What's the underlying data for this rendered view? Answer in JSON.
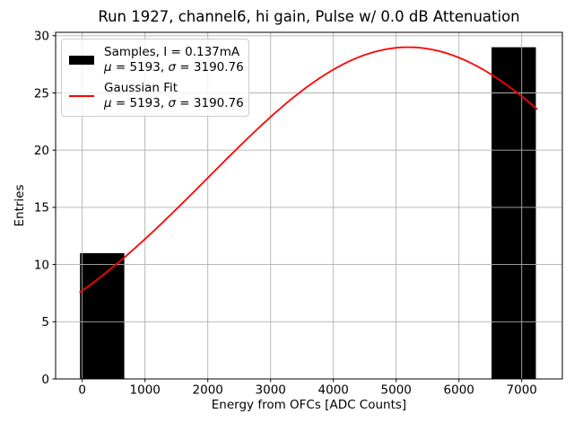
{
  "chart_data": {
    "type": "bar",
    "subtype": "histogram-with-fit",
    "title": "Run 1927, channel6, hi gain, Pulse w/ 0.0 dB Attenuation",
    "xlabel": "Energy from OFCs [ADC Counts]",
    "ylabel": "Entries",
    "bars": [
      {
        "x_start": -35,
        "x_end": 670,
        "count": 11
      },
      {
        "x_start": 6520,
        "x_end": 7225,
        "count": 29
      }
    ],
    "gaussian_fit": {
      "amplitude": 29,
      "mu": 5193,
      "sigma": 3190.76,
      "x_start": -35,
      "x_end": 7240
    },
    "x_ticks": [
      0,
      1000,
      2000,
      3000,
      4000,
      5000,
      6000,
      7000
    ],
    "y_ticks": [
      0,
      5,
      10,
      15,
      20,
      25,
      30
    ],
    "xlim": [
      -424,
      7647
    ],
    "ylim": [
      0,
      30.3
    ],
    "grid": true,
    "legend_position": "upper left",
    "colors": {
      "bars": "#000000",
      "fit_line": "#ff0000",
      "grid": "#b0b0b0",
      "spine": "#000000",
      "text": "#000000"
    }
  },
  "legend": {
    "entries": [
      {
        "swatch_type": "patch",
        "swatch_color": "#000000",
        "lines": [
          "Samples, I = 0.137mA",
          "μ = 5193, σ = 3190.76"
        ]
      },
      {
        "swatch_type": "line",
        "swatch_color": "#ff0000",
        "lines": [
          "Gaussian Fit",
          "μ = 5193, σ = 3190.76"
        ]
      }
    ]
  }
}
